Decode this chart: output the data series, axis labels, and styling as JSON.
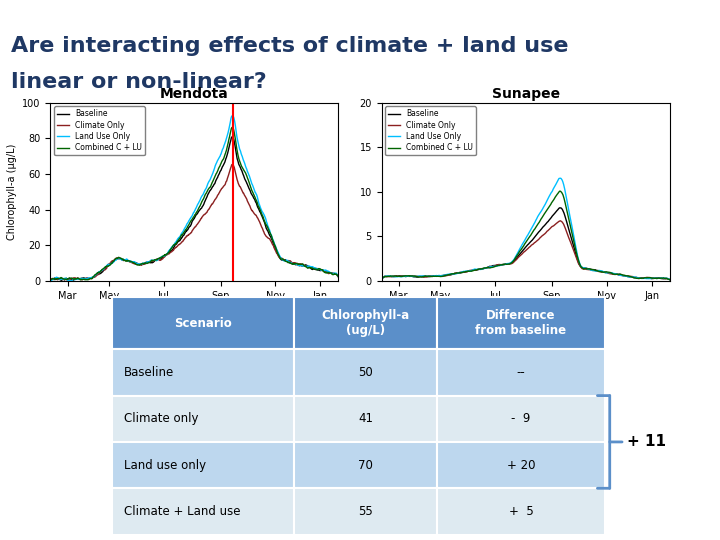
{
  "title_line1": "Are interacting effects of climate + land use",
  "title_line2": "linear or non-linear?",
  "title_color": "#1F3864",
  "title_bg_color": "#5B8FC9",
  "subtitle_mendota": "Mendota",
  "subtitle_sunapee": "Sunapee",
  "table_header_bg": "#5B8FC9",
  "table_header_text": "#FFFFFF",
  "table_row1_bg": "#BDD7EE",
  "table_row2_bg": "#DEEAF1",
  "table_rows": [
    [
      "Baseline",
      "50",
      "--"
    ],
    [
      "Climate only",
      "41",
      "-  9"
    ],
    [
      "Land use only",
      "70",
      "+ 20"
    ],
    [
      "Climate + Land use",
      "55",
      "+  5"
    ]
  ],
  "table_headers": [
    "Scenario",
    "Chlorophyll-a\n(ug/L)",
    "Difference\nfrom baseline"
  ],
  "brace_color": "#5B8FC9",
  "plus11_text": "+ 11",
  "legend_labels": [
    "Baseline",
    "Climate Only",
    "Land Use Only",
    "Combined C + LU"
  ],
  "legend_colors": [
    "#000000",
    "#8B2020",
    "#00BFFF",
    "#006400"
  ],
  "red_line_color": "#FF0000",
  "bg_color": "#FFFFFF"
}
